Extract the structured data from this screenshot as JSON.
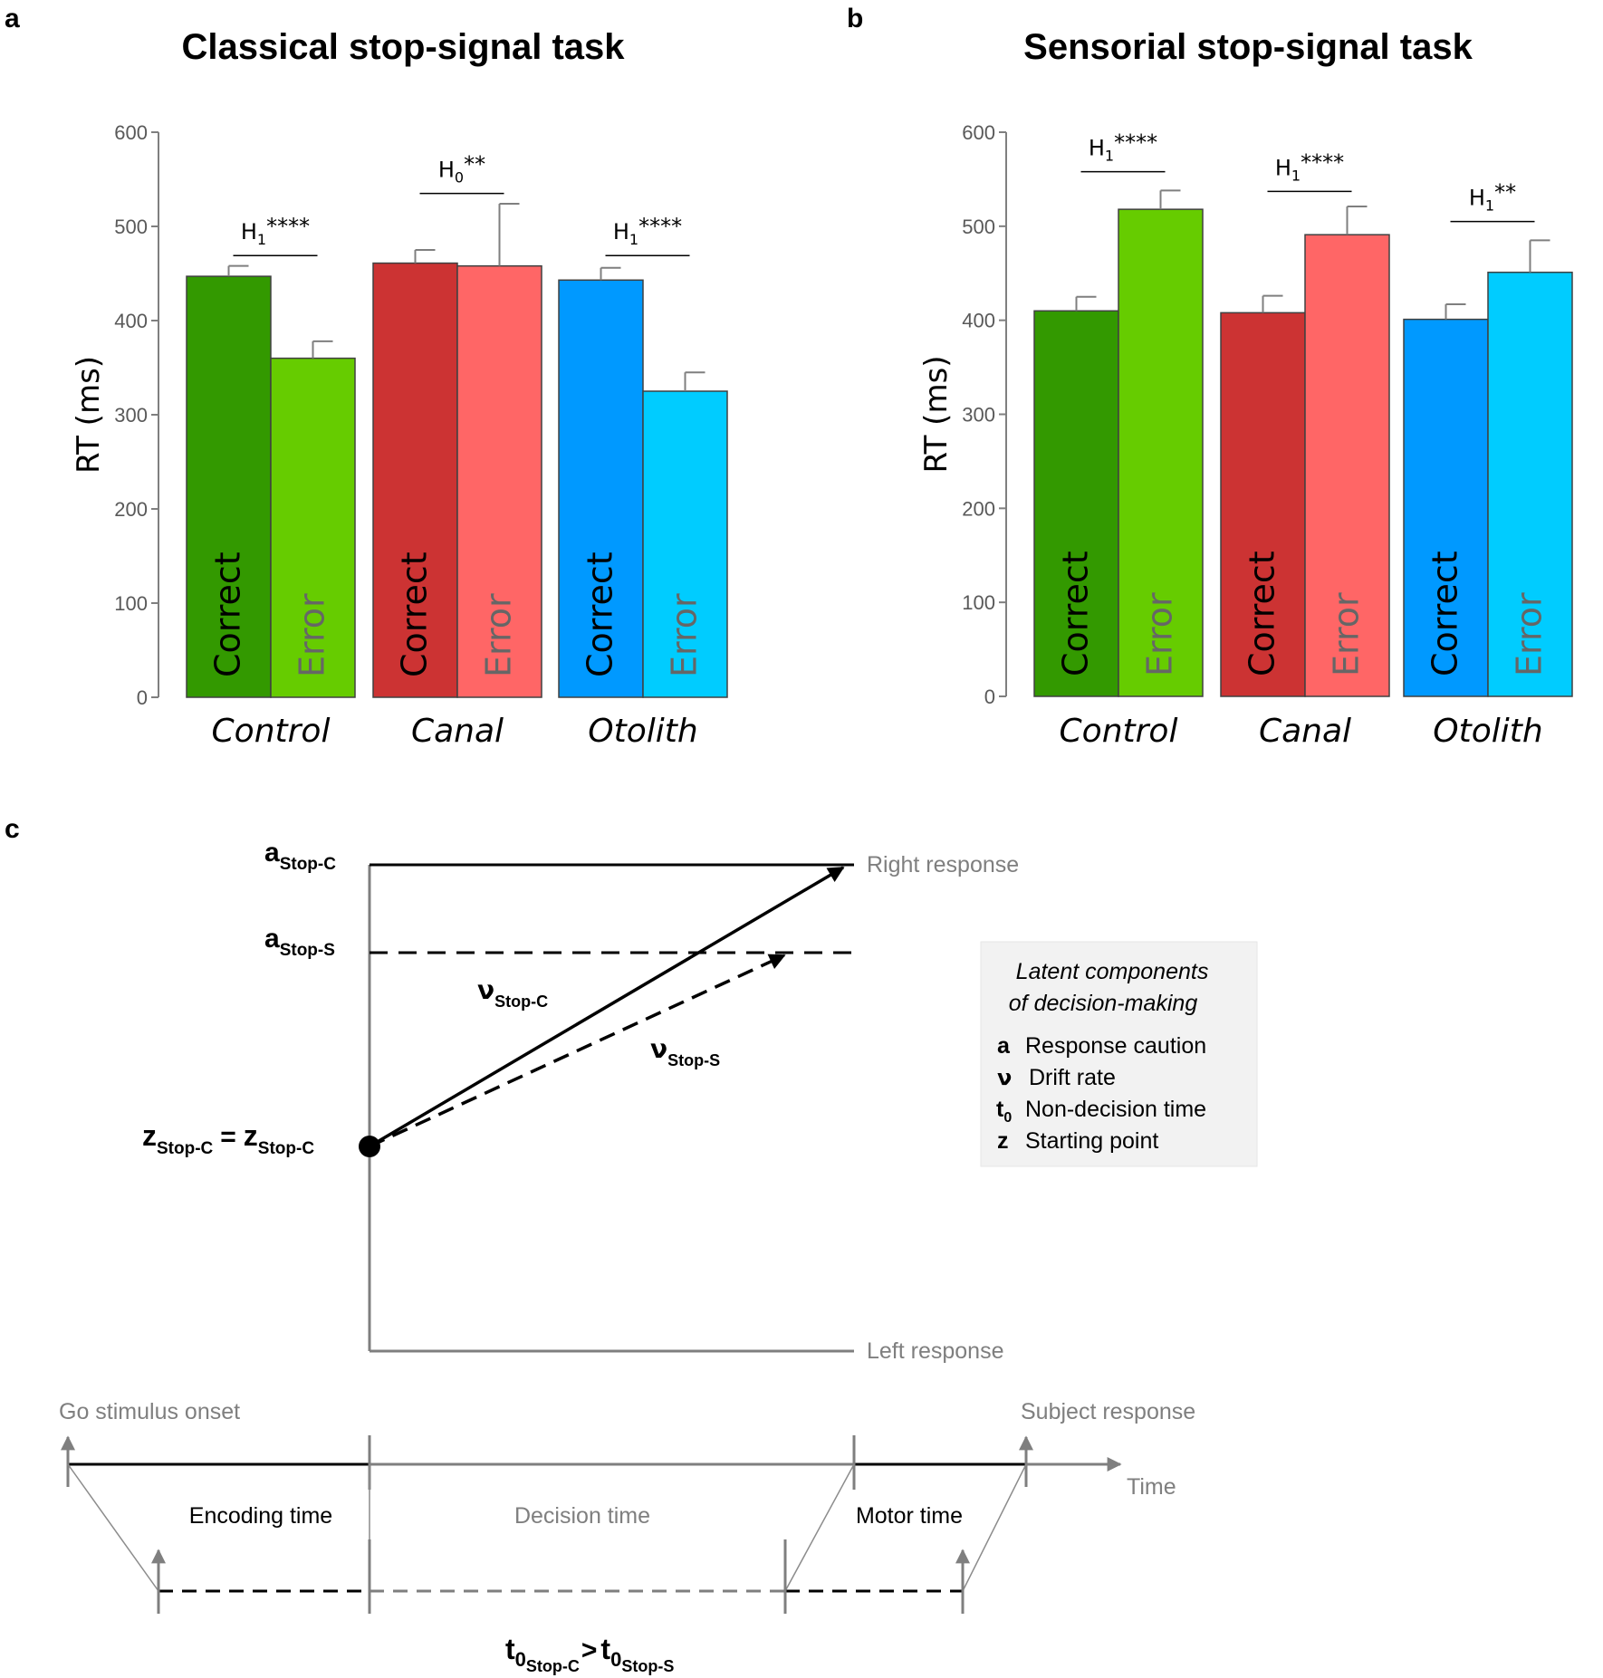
{
  "panels": {
    "a": {
      "letter": "a"
    },
    "b": {
      "letter": "b"
    },
    "c": {
      "letter": "c"
    }
  },
  "chart_data": [
    {
      "type": "bar",
      "title": "Classical stop-signal task",
      "ylabel": "RT (ms)",
      "ylim": [
        0,
        600
      ],
      "yticks": [
        "0",
        "100",
        "200",
        "300",
        "400",
        "500",
        "600"
      ],
      "categories": [
        "Control",
        "Canal",
        "Otolith"
      ],
      "bar_labels": [
        "Correct",
        "Error"
      ],
      "series": [
        {
          "name": "Correct",
          "values": [
            447,
            461,
            443
          ],
          "errors": [
            11,
            14,
            13
          ],
          "colors": [
            "#339900",
            "#cc3333",
            "#0099ff"
          ]
        },
        {
          "name": "Error",
          "values": [
            360,
            458,
            325
          ],
          "errors": [
            18,
            66,
            20
          ],
          "colors": [
            "#66cc00",
            "#ff6666",
            "#00ccff"
          ]
        }
      ],
      "annotations": [
        {
          "hyp": "H",
          "sub": "1",
          "stars": "****",
          "y": 469
        },
        {
          "hyp": "H",
          "sub": "0",
          "stars": "**",
          "y": 535
        },
        {
          "hyp": "H",
          "sub": "1",
          "stars": "****",
          "y": 469
        }
      ]
    },
    {
      "type": "bar",
      "title": "Sensorial stop-signal task",
      "ylabel": "RT (ms)",
      "ylim": [
        0,
        600
      ],
      "yticks": [
        "0",
        "100",
        "200",
        "300",
        "400",
        "500",
        "600"
      ],
      "categories": [
        "Control",
        "Canal",
        "Otolith"
      ],
      "bar_labels": [
        "Correct",
        "Error"
      ],
      "series": [
        {
          "name": "Correct",
          "values": [
            410,
            408,
            401
          ],
          "errors": [
            15,
            18,
            16
          ],
          "colors": [
            "#339900",
            "#cc3333",
            "#0099ff"
          ]
        },
        {
          "name": "Error",
          "values": [
            518,
            491,
            451
          ],
          "errors": [
            20,
            30,
            34
          ],
          "colors": [
            "#66cc00",
            "#ff6666",
            "#00ccff"
          ]
        }
      ],
      "annotations": [
        {
          "hyp": "H",
          "sub": "1",
          "stars": "****",
          "y": 558
        },
        {
          "hyp": "H",
          "sub": "1",
          "stars": "****",
          "y": 537
        },
        {
          "hyp": "H",
          "sub": "1",
          "stars": "**",
          "y": 505
        }
      ]
    }
  ],
  "diagram": {
    "boundary_top": {
      "main": "a",
      "sub": "Stop-C"
    },
    "boundary_mid": {
      "main": "a",
      "sub": "Stop-S"
    },
    "start_point": {
      "main1": "z",
      "sub1": "Stop-C",
      "eq": "=",
      "main2": "z",
      "sub2": "Stop-C"
    },
    "drift_c": {
      "main": "ν",
      "sub": "Stop-C"
    },
    "drift_s": {
      "main": "ν",
      "sub": "Stop-S"
    },
    "right_response": "Right response",
    "left_response": "Left response",
    "legend": {
      "title_line1": "Latent components",
      "title_line2": "of decision-making",
      "items": [
        {
          "key": "a",
          "key_sub": "",
          "text": "Response caution"
        },
        {
          "key": "ν",
          "key_sub": "",
          "text": "Drift rate"
        },
        {
          "key": "t",
          "key_sub": "0",
          "text": "Non-decision time"
        },
        {
          "key": "z",
          "key_sub": "",
          "text": "Starting point"
        }
      ]
    },
    "timeline": {
      "go_onset": "Go stimulus onset",
      "subject_response": "Subject response",
      "time_label": "Time",
      "encoding": "Encoding time",
      "decision": "Decision time",
      "motor": "Motor time"
    },
    "formula": {
      "t1": "t",
      "s1a": "0",
      "s1b": "Stop-C",
      "gt": ">",
      "t2": "t",
      "s2a": "0",
      "s2b": "Stop-S"
    }
  }
}
